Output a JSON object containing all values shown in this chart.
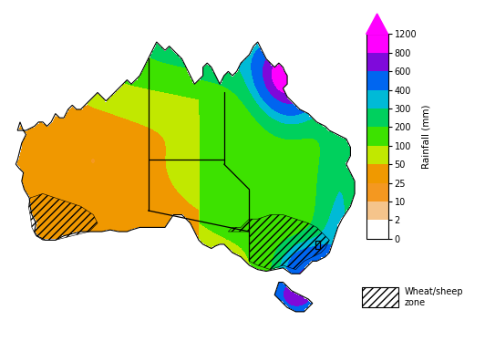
{
  "colorbar_label": "Rainfall (mm)",
  "colorbar_ticks": [
    0,
    2,
    10,
    25,
    50,
    100,
    200,
    300,
    400,
    600,
    800,
    1200
  ],
  "colorbar_colors": [
    "#ffffff",
    "#f5c896",
    "#f5a028",
    "#f07800",
    "#f0e800",
    "#78e800",
    "#00dc00",
    "#00c8a0",
    "#00b4f0",
    "#0050f0",
    "#9000d8",
    "#ff00ff"
  ],
  "legend_label": "Wheat/sheep\nzone",
  "fig_width": 5.32,
  "fig_height": 3.74,
  "dpi": 100
}
